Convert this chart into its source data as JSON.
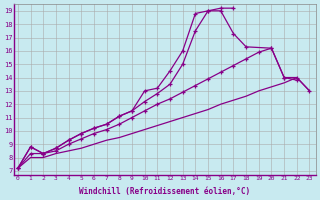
{
  "bg_color": "#c8eaf0",
  "grid_color": "#aaaaaa",
  "line_color": "#880088",
  "xlabel": "Windchill (Refroidissement éolien,°C)",
  "xlabel_color": "#880088",
  "ylabel_ticks": [
    7,
    8,
    9,
    10,
    11,
    12,
    13,
    14,
    15,
    16,
    17,
    18,
    19
  ],
  "xlabel_ticks": [
    0,
    1,
    2,
    3,
    4,
    5,
    6,
    7,
    8,
    9,
    10,
    11,
    12,
    13,
    14,
    15,
    16,
    17,
    18,
    19,
    20,
    21,
    22,
    23
  ],
  "xlim": [
    -0.3,
    23.5
  ],
  "ylim": [
    6.7,
    19.5
  ],
  "series1_x": [
    0,
    1,
    2,
    3,
    4,
    5,
    6,
    7,
    8,
    9,
    10,
    11,
    12,
    13,
    14,
    15,
    16,
    17
  ],
  "series1_y": [
    7.2,
    8.8,
    8.3,
    8.7,
    9.3,
    9.8,
    10.2,
    10.5,
    11.1,
    11.5,
    13.0,
    13.2,
    14.5,
    16.0,
    18.8,
    19.0,
    19.2,
    19.2
  ],
  "series2_x": [
    0,
    1,
    2,
    3,
    4,
    5,
    6,
    7,
    8,
    9,
    10,
    11,
    12,
    13,
    14,
    15,
    16,
    17,
    18,
    20,
    21,
    22
  ],
  "series2_y": [
    7.2,
    8.8,
    8.3,
    8.7,
    9.3,
    9.8,
    10.2,
    10.5,
    11.1,
    11.5,
    12.2,
    12.8,
    13.5,
    15.0,
    17.5,
    19.0,
    19.0,
    17.3,
    16.3,
    16.2,
    14.0,
    13.8
  ],
  "series3_x": [
    0,
    1,
    2,
    3,
    4,
    5,
    6,
    7,
    8,
    9,
    10,
    11,
    12,
    13,
    14,
    15,
    16,
    17,
    18,
    19,
    20,
    21,
    22,
    23
  ],
  "series3_y": [
    7.2,
    8.3,
    8.3,
    8.5,
    9.0,
    9.4,
    9.8,
    10.1,
    10.5,
    11.0,
    11.5,
    12.0,
    12.4,
    12.9,
    13.4,
    13.9,
    14.4,
    14.9,
    15.4,
    15.9,
    16.2,
    14.0,
    14.0,
    13.0
  ],
  "series4_x": [
    0,
    1,
    2,
    3,
    4,
    5,
    6,
    7,
    8,
    9,
    10,
    11,
    12,
    13,
    14,
    15,
    16,
    17,
    18,
    19,
    20,
    21,
    22,
    23
  ],
  "series4_y": [
    7.2,
    8.0,
    8.0,
    8.3,
    8.5,
    8.7,
    9.0,
    9.3,
    9.5,
    9.8,
    10.1,
    10.4,
    10.7,
    11.0,
    11.3,
    11.6,
    12.0,
    12.3,
    12.6,
    13.0,
    13.3,
    13.6,
    14.0,
    13.0
  ]
}
